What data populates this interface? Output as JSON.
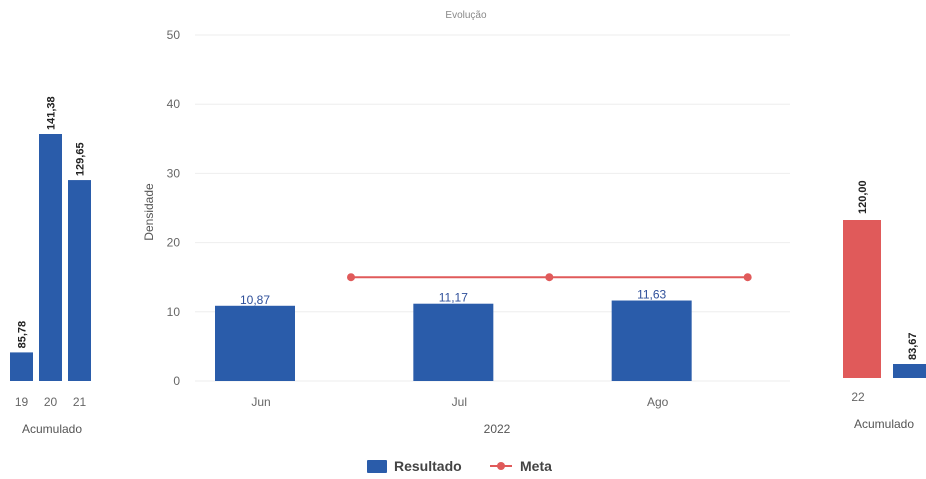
{
  "chart_data": [
    {
      "type": "bar",
      "categories": [
        "19",
        "20",
        "21"
      ],
      "values": [
        85.78,
        141.38,
        129.65
      ],
      "value_labels": [
        "85,78",
        "141,38",
        "129,65"
      ],
      "xlabel": "Acumulado",
      "bar_color": "#2a5caa"
    },
    {
      "type": "bar",
      "title": "Evolução",
      "categories": [
        "Jun",
        "Jul",
        "Ago"
      ],
      "x_group_label": "2022",
      "ylabel": "Densidade",
      "ylim": [
        0,
        50
      ],
      "yticks": [
        0,
        10,
        20,
        30,
        40,
        50
      ],
      "grid": true,
      "legend_position": "bottom",
      "series": [
        {
          "name": "Resultado",
          "type": "bar",
          "values": [
            10.87,
            11.17,
            11.63
          ],
          "labels": [
            "10,87",
            "11,17",
            "11,63"
          ],
          "color": "#2a5caa"
        },
        {
          "name": "Meta",
          "type": "line",
          "values": [
            15,
            15,
            15
          ],
          "color": "#e05a5a"
        }
      ]
    },
    {
      "type": "bar",
      "categories": [
        "22"
      ],
      "series": [
        {
          "values": [
            120.0
          ],
          "labels": [
            "120,00"
          ],
          "color": "#e05a5a"
        },
        {
          "values": [
            83.67
          ],
          "labels": [
            "83,67"
          ],
          "color": "#2a5caa"
        }
      ],
      "xlabel": "Acumulado"
    }
  ]
}
